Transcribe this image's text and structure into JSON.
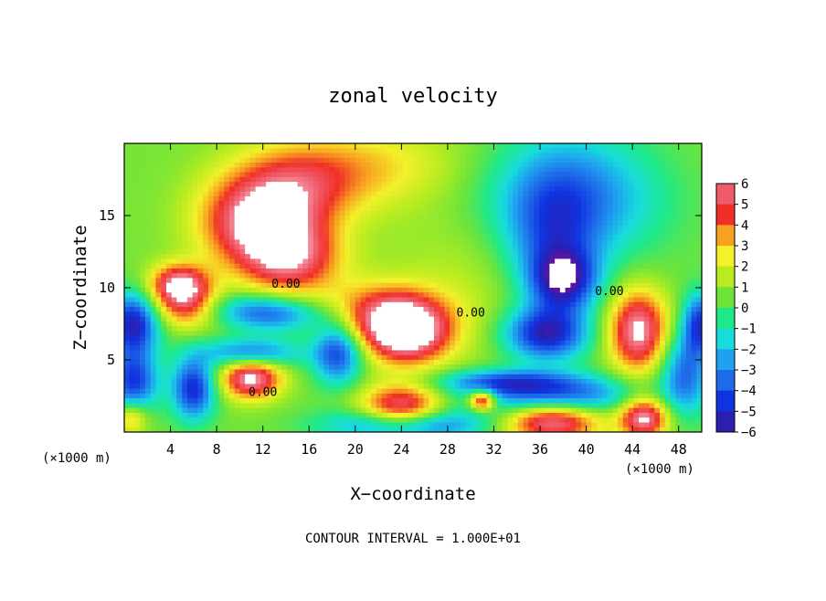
{
  "chart_data": {
    "type": "heatmap",
    "title": "zonal velocity",
    "xlabel": "X−coordinate",
    "ylabel": "Z−coordinate",
    "x_unit_left": "(×1000 m)",
    "x_unit_right": "(×1000 m)",
    "footer": "CONTOUR INTERVAL = 1.000E+01",
    "xlim": [
      0,
      50
    ],
    "ylim": [
      0,
      20
    ],
    "xticks": [
      4,
      8,
      12,
      16,
      20,
      24,
      28,
      32,
      36,
      40,
      44,
      48
    ],
    "yticks": [
      5,
      10,
      15
    ],
    "colorbar": {
      "levels": [
        6,
        5,
        4,
        3,
        2,
        1,
        0,
        -1,
        -2,
        -3,
        -4,
        -5,
        -6
      ],
      "range": [
        -6,
        6
      ]
    },
    "contour_labels": [
      {
        "text": "0.00",
        "x": 14,
        "y": 10
      },
      {
        "text": "0.00",
        "x": 12,
        "y": 2.5
      },
      {
        "text": "0.00",
        "x": 30,
        "y": 8
      },
      {
        "text": "0.00",
        "x": 42,
        "y": 9.5
      }
    ],
    "features": [
      {
        "value": 5.5,
        "x": 11.5,
        "y": 14.5,
        "sx": 3.5,
        "sy": 2.2
      },
      {
        "value": 4.5,
        "x": 14.5,
        "y": 12.0,
        "sx": 3.0,
        "sy": 1.8
      },
      {
        "value": 3.0,
        "x": 15.0,
        "y": 17.0,
        "sx": 4.0,
        "sy": 2.0
      },
      {
        "value": 2.0,
        "x": 21.0,
        "y": 18.5,
        "sx": 6.0,
        "sy": 2.0
      },
      {
        "value": 6.0,
        "x": 4.8,
        "y": 10.2,
        "sx": 1.8,
        "sy": 1.0
      },
      {
        "value": 3.5,
        "x": 5.5,
        "y": 8.5,
        "sx": 2.0,
        "sy": 1.0
      },
      {
        "value": -3.0,
        "x": 11.5,
        "y": 8.5,
        "sx": 3.5,
        "sy": 0.8
      },
      {
        "value": -2.0,
        "x": 13.5,
        "y": 7.8,
        "sx": 3.0,
        "sy": 0.8
      },
      {
        "value": 6.0,
        "x": 24.5,
        "y": 6.8,
        "sx": 2.6,
        "sy": 1.5
      },
      {
        "value": 4.0,
        "x": 22.5,
        "y": 8.2,
        "sx": 3.5,
        "sy": 1.5
      },
      {
        "value": -6.0,
        "x": 36.5,
        "y": 6.8,
        "sx": 2.5,
        "sy": 1.3
      },
      {
        "value": -5.5,
        "x": 38.0,
        "y": 10.5,
        "sx": 2.0,
        "sy": 1.5
      },
      {
        "value": -3.5,
        "x": 37.0,
        "y": 13.5,
        "sx": 3.0,
        "sy": 3.0
      },
      {
        "value": -2.5,
        "x": 38.0,
        "y": 17.0,
        "sx": 4.0,
        "sy": 3.0
      },
      {
        "value": -1.5,
        "x": 43.0,
        "y": 16.0,
        "sx": 4.0,
        "sy": 3.0
      },
      {
        "value": 6.0,
        "x": 44.5,
        "y": 7.0,
        "sx": 1.8,
        "sy": 2.0
      },
      {
        "value": -6.0,
        "x": 0.8,
        "y": 7.5,
        "sx": 1.5,
        "sy": 1.5
      },
      {
        "value": -5.0,
        "x": 0.8,
        "y": 3.5,
        "sx": 1.5,
        "sy": 1.5
      },
      {
        "value": -5.5,
        "x": 6.0,
        "y": 3.0,
        "sx": 1.3,
        "sy": 1.5
      },
      {
        "value": 6.0,
        "x": 11.0,
        "y": 3.7,
        "sx": 1.8,
        "sy": 1.0
      },
      {
        "value": -4.0,
        "x": 11.0,
        "y": 5.5,
        "sx": 3.0,
        "sy": 0.7
      },
      {
        "value": -5.0,
        "x": 18.5,
        "y": 5.5,
        "sx": 1.5,
        "sy": 1.5
      },
      {
        "value": 6.0,
        "x": 24.0,
        "y": 1.5,
        "sx": 2.5,
        "sy": 1.2
      },
      {
        "value": -5.5,
        "x": 24.5,
        "y": 0.5,
        "sx": 4.5,
        "sy": 0.8
      },
      {
        "value": 6.0,
        "x": 37.0,
        "y": 0.8,
        "sx": 3.0,
        "sy": 1.0
      },
      {
        "value": -5.0,
        "x": 37.0,
        "y": 2.5,
        "sx": 5.0,
        "sy": 1.0
      },
      {
        "value": 6.0,
        "x": 45.0,
        "y": 1.0,
        "sx": 1.5,
        "sy": 1.0
      },
      {
        "value": -4.0,
        "x": 48.5,
        "y": 4.0,
        "sx": 1.5,
        "sy": 2.0
      },
      {
        "value": -5.0,
        "x": 49.8,
        "y": 7.5,
        "sx": 1.0,
        "sy": 1.5
      },
      {
        "value": 6.0,
        "x": 31.0,
        "y": 2.2,
        "sx": 0.8,
        "sy": 0.5
      },
      {
        "value": -3.5,
        "x": 32.5,
        "y": 3.5,
        "sx": 4.0,
        "sy": 0.6
      },
      {
        "value": 3.0,
        "x": 0.6,
        "y": 1.0,
        "sx": 1.0,
        "sy": 0.8
      },
      {
        "value": 1.0,
        "x": 30.0,
        "y": 12.0,
        "sx": 5.0,
        "sy": 5.0
      },
      {
        "value": -1.0,
        "x": 31.0,
        "y": 16.5,
        "sx": 4.0,
        "sy": 3.0
      }
    ]
  }
}
